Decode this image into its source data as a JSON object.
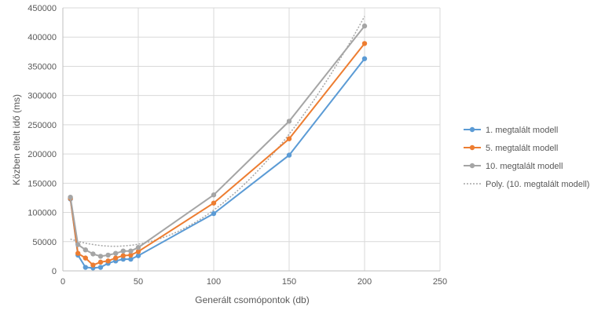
{
  "chart_data": {
    "type": "line",
    "title": "",
    "xlabel": "Generált csomópontok (db)",
    "ylabel": "Közben eltelt idő (ms)",
    "xlim": [
      0,
      250
    ],
    "ylim": [
      0,
      450000
    ],
    "x_ticks": [
      "0",
      "50",
      "100",
      "150",
      "200",
      "250"
    ],
    "y_ticks": [
      "0",
      "50000",
      "100000",
      "150000",
      "200000",
      "250000",
      "300000",
      "350000",
      "400000",
      "450000"
    ],
    "grid": true,
    "legend_position": "right",
    "x": [
      5,
      10,
      15,
      20,
      25,
      30,
      35,
      40,
      45,
      50,
      100,
      150,
      200
    ],
    "series": [
      {
        "name": "1. megtalált modell",
        "color": "#5b9bd5",
        "values": [
          123000,
          27000,
          6000,
          5000,
          6000,
          13000,
          17000,
          20000,
          20000,
          26000,
          98000,
          198000,
          363000
        ]
      },
      {
        "name": "5. megtalált modell",
        "color": "#ed7d31",
        "values": [
          124000,
          30000,
          22000,
          10000,
          15000,
          17000,
          22000,
          26000,
          27000,
          33000,
          116000,
          226000,
          389000
        ]
      },
      {
        "name": "10. megtalált modell",
        "color": "#a5a5a5",
        "values": [
          126000,
          45000,
          36000,
          29000,
          25000,
          27000,
          30000,
          34000,
          34000,
          40000,
          130000,
          256000,
          419000
        ]
      }
    ],
    "trendline": {
      "name": "Poly. (10. megtalált modell)",
      "of_series": "10. megtalált modell",
      "type": "polynomial",
      "color": "#a5a5a5"
    }
  }
}
